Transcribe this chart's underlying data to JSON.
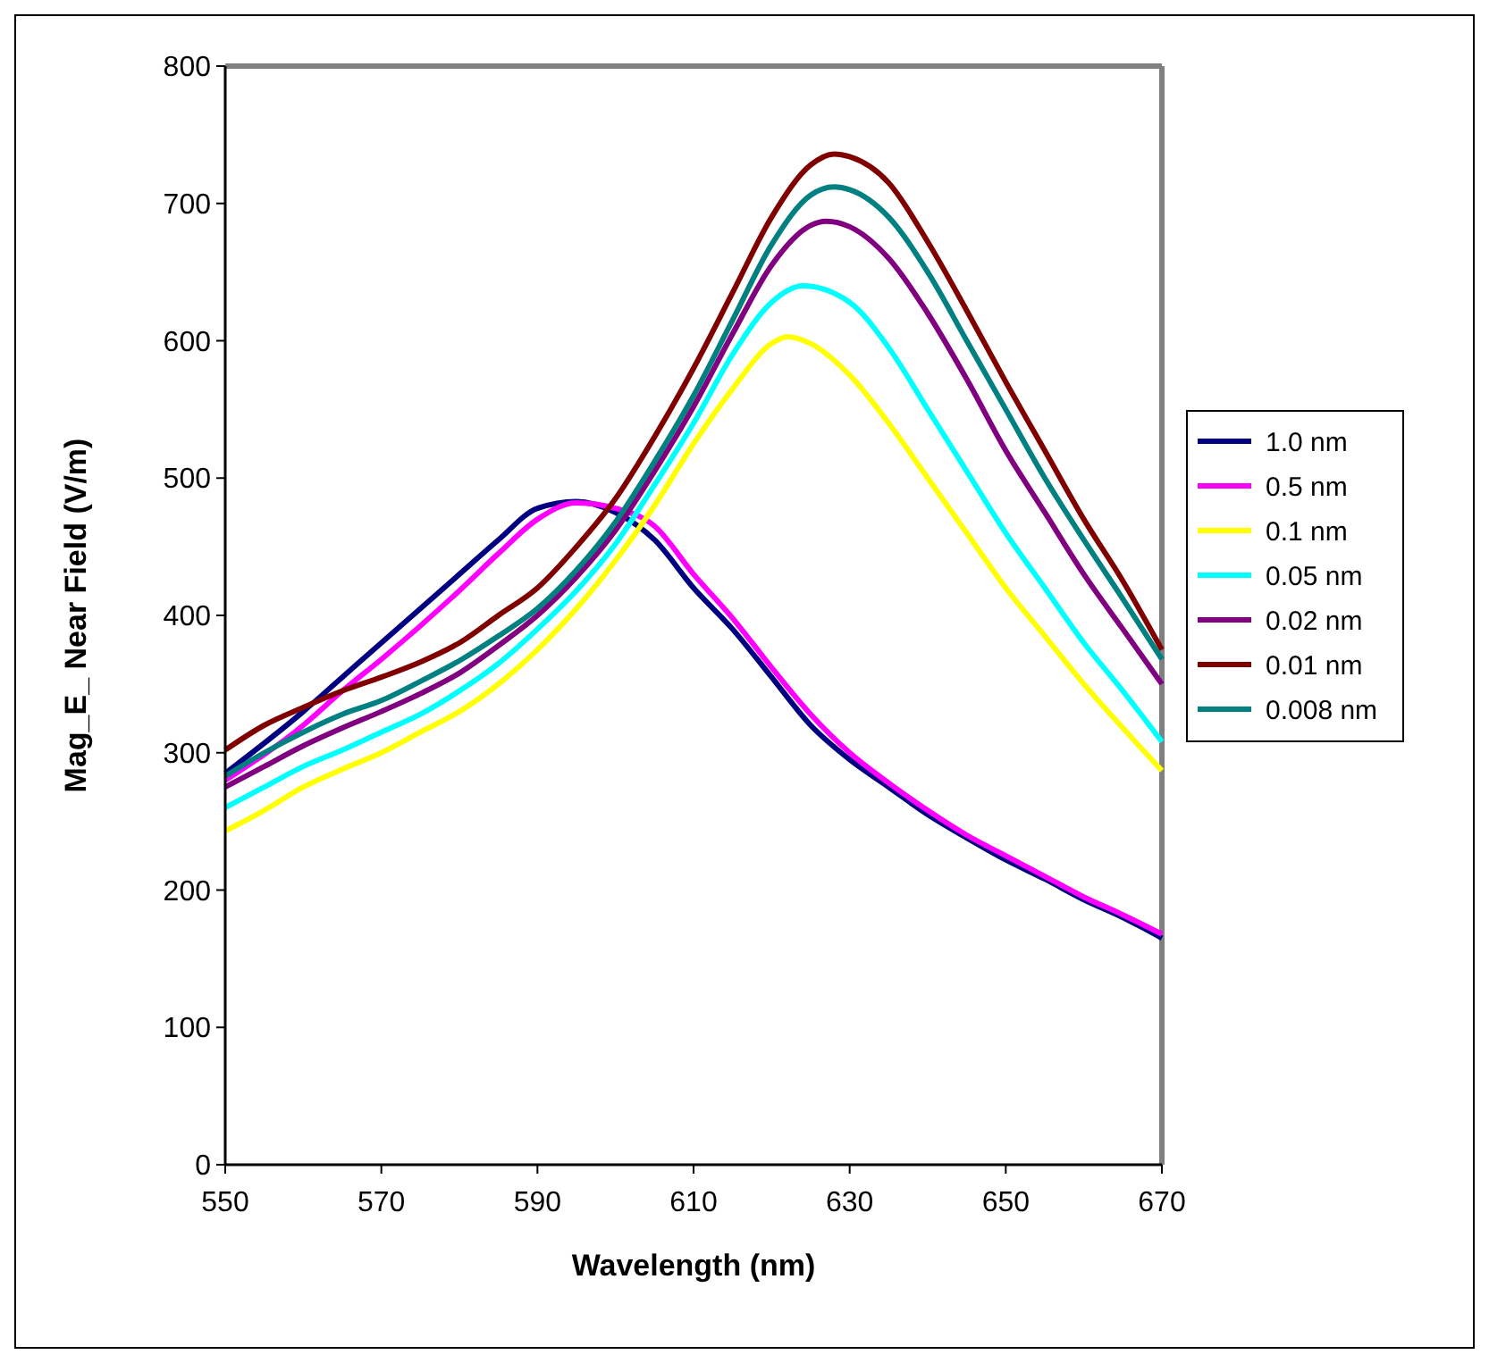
{
  "chart_data": {
    "type": "line",
    "xlabel": "Wavelength (nm)",
    "ylabel": "Mag_E_ Near Field (V/m)",
    "xlim": [
      550,
      670
    ],
    "ylim": [
      0,
      800
    ],
    "xticks": [
      550,
      570,
      590,
      610,
      630,
      650,
      670
    ],
    "yticks": [
      0,
      100,
      200,
      300,
      400,
      500,
      600,
      700,
      800
    ],
    "grid": false,
    "legend": "right",
    "marker": "none",
    "line_style": "solid",
    "series": [
      {
        "name": "1.0 nm",
        "color": "#000080",
        "x": [
          550,
          560,
          565,
          570,
          580,
          585,
          590,
          595,
          600,
          605,
          610,
          615,
          620,
          625,
          630,
          635,
          640,
          645,
          650,
          655,
          660,
          665,
          670
        ],
        "values": [
          285,
          330,
          355,
          380,
          430,
          455,
          478,
          483,
          475,
          455,
          420,
          390,
          355,
          320,
          295,
          275,
          255,
          238,
          222,
          208,
          193,
          180,
          165
        ]
      },
      {
        "name": "0.5 nm",
        "color": "#ff00ff",
        "x": [
          550,
          560,
          565,
          570,
          580,
          585,
          590,
          595,
          600,
          605,
          610,
          615,
          620,
          625,
          630,
          635,
          640,
          645,
          650,
          655,
          660,
          665,
          670
        ],
        "values": [
          280,
          320,
          345,
          368,
          418,
          445,
          470,
          482,
          478,
          465,
          430,
          398,
          362,
          328,
          300,
          278,
          258,
          240,
          225,
          210,
          195,
          182,
          168
        ]
      },
      {
        "name": "0.1 nm",
        "color": "#ffff00",
        "x": [
          550,
          555,
          560,
          565,
          570,
          575,
          580,
          585,
          590,
          595,
          600,
          605,
          610,
          615,
          620,
          622,
          625,
          630,
          635,
          640,
          645,
          650,
          655,
          660,
          665,
          670
        ],
        "values": [
          243,
          258,
          275,
          288,
          300,
          315,
          330,
          350,
          375,
          405,
          440,
          480,
          525,
          565,
          598,
          603,
          598,
          575,
          540,
          500,
          460,
          420,
          385,
          350,
          318,
          287
        ]
      },
      {
        "name": "0.05 nm",
        "color": "#00ffff",
        "x": [
          550,
          555,
          560,
          565,
          570,
          575,
          580,
          585,
          590,
          595,
          600,
          605,
          610,
          615,
          620,
          624,
          630,
          635,
          640,
          645,
          650,
          655,
          660,
          665,
          670
        ],
        "values": [
          260,
          275,
          290,
          302,
          315,
          328,
          345,
          365,
          390,
          418,
          452,
          495,
          540,
          590,
          628,
          640,
          628,
          595,
          550,
          505,
          460,
          420,
          380,
          345,
          308
        ]
      },
      {
        "name": "0.02 nm",
        "color": "#800080",
        "x": [
          550,
          555,
          560,
          565,
          570,
          575,
          580,
          585,
          590,
          595,
          600,
          605,
          610,
          615,
          620,
          625,
          627,
          630,
          635,
          640,
          645,
          650,
          655,
          660,
          665,
          670
        ],
        "values": [
          275,
          290,
          305,
          318,
          330,
          343,
          358,
          378,
          400,
          428,
          462,
          505,
          552,
          605,
          655,
          684,
          687,
          683,
          660,
          620,
          572,
          520,
          475,
          430,
          390,
          350
        ]
      },
      {
        "name": "0.01 nm",
        "color": "#800000",
        "x": [
          550,
          555,
          560,
          565,
          570,
          575,
          580,
          585,
          590,
          595,
          600,
          605,
          610,
          615,
          620,
          625,
          628,
          630,
          635,
          640,
          645,
          650,
          655,
          660,
          665,
          670
        ],
        "values": [
          302,
          320,
          333,
          345,
          355,
          366,
          380,
          400,
          420,
          450,
          485,
          530,
          580,
          635,
          690,
          728,
          736,
          734,
          715,
          672,
          622,
          570,
          520,
          470,
          425,
          375
        ]
      },
      {
        "name": "0.008 nm",
        "color": "#008080",
        "x": [
          550,
          555,
          560,
          565,
          570,
          575,
          580,
          585,
          590,
          595,
          600,
          605,
          610,
          615,
          620,
          625,
          628,
          630,
          635,
          640,
          645,
          650,
          655,
          660,
          665,
          670
        ],
        "values": [
          283,
          300,
          315,
          328,
          338,
          352,
          367,
          385,
          405,
          433,
          468,
          512,
          560,
          615,
          670,
          706,
          712,
          710,
          690,
          650,
          600,
          550,
          500,
          455,
          412,
          368
        ]
      }
    ]
  }
}
